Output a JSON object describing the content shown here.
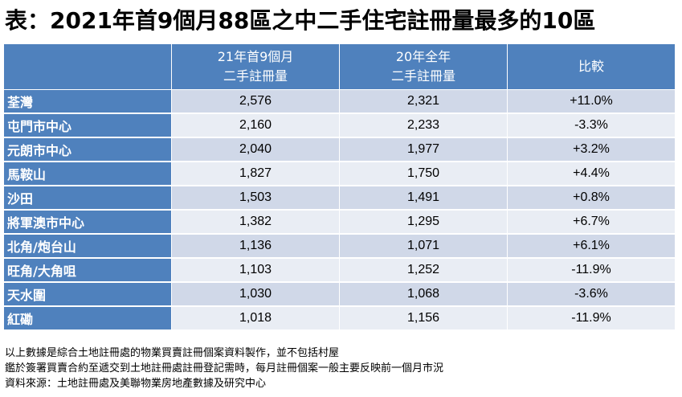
{
  "title": "表：2021年首9個月88區之中二手住宅註冊量最多的10區",
  "table": {
    "headers": [
      {
        "lines": [
          ""
        ]
      },
      {
        "lines": [
          "21年首9個月",
          "二手註冊量"
        ]
      },
      {
        "lines": [
          "20年全年",
          "二手註冊量"
        ]
      },
      {
        "lines": [
          "比較"
        ]
      }
    ],
    "rows": [
      {
        "district": "荃灣",
        "ytd2021": "2,576",
        "full2020": "2,321",
        "change": "+11.0%"
      },
      {
        "district": "屯門市中心",
        "ytd2021": "2,160",
        "full2020": "2,233",
        "change": "-3.3%"
      },
      {
        "district": "元朗市中心",
        "ytd2021": "2,040",
        "full2020": "1,977",
        "change": "+3.2%"
      },
      {
        "district": "馬鞍山",
        "ytd2021": "1,827",
        "full2020": "1,750",
        "change": "+4.4%"
      },
      {
        "district": "沙田",
        "ytd2021": "1,503",
        "full2020": "1,491",
        "change": "+0.8%"
      },
      {
        "district": "將軍澳市中心",
        "ytd2021": "1,382",
        "full2020": "1,295",
        "change": "+6.7%"
      },
      {
        "district": "北角/炮台山",
        "ytd2021": "1,136",
        "full2020": "1,071",
        "change": "+6.1%"
      },
      {
        "district": "旺角/大角咀",
        "ytd2021": "1,103",
        "full2020": "1,252",
        "change": "-11.9%"
      },
      {
        "district": "天水圍",
        "ytd2021": "1,030",
        "full2020": "1,068",
        "change": "-3.6%"
      },
      {
        "district": "紅磡",
        "ytd2021": "1,018",
        "full2020": "1,156",
        "change": "-11.9%"
      }
    ]
  },
  "notes": [
    "以上數據是綜合土地註冊處的物業買賣註冊個案資料製作，並不包括村屋",
    "鑑於簽署買賣合約至遞交到土地註冊處註冊登記需時，每月註冊個案一般主要反映前一個月市況",
    "資料來源：土地註冊處及美聯物業房地產數據及研究中心"
  ],
  "colors": {
    "header_bg": "#4f81bd",
    "row_odd": "#d0d8e8",
    "row_even": "#e9edf4"
  }
}
